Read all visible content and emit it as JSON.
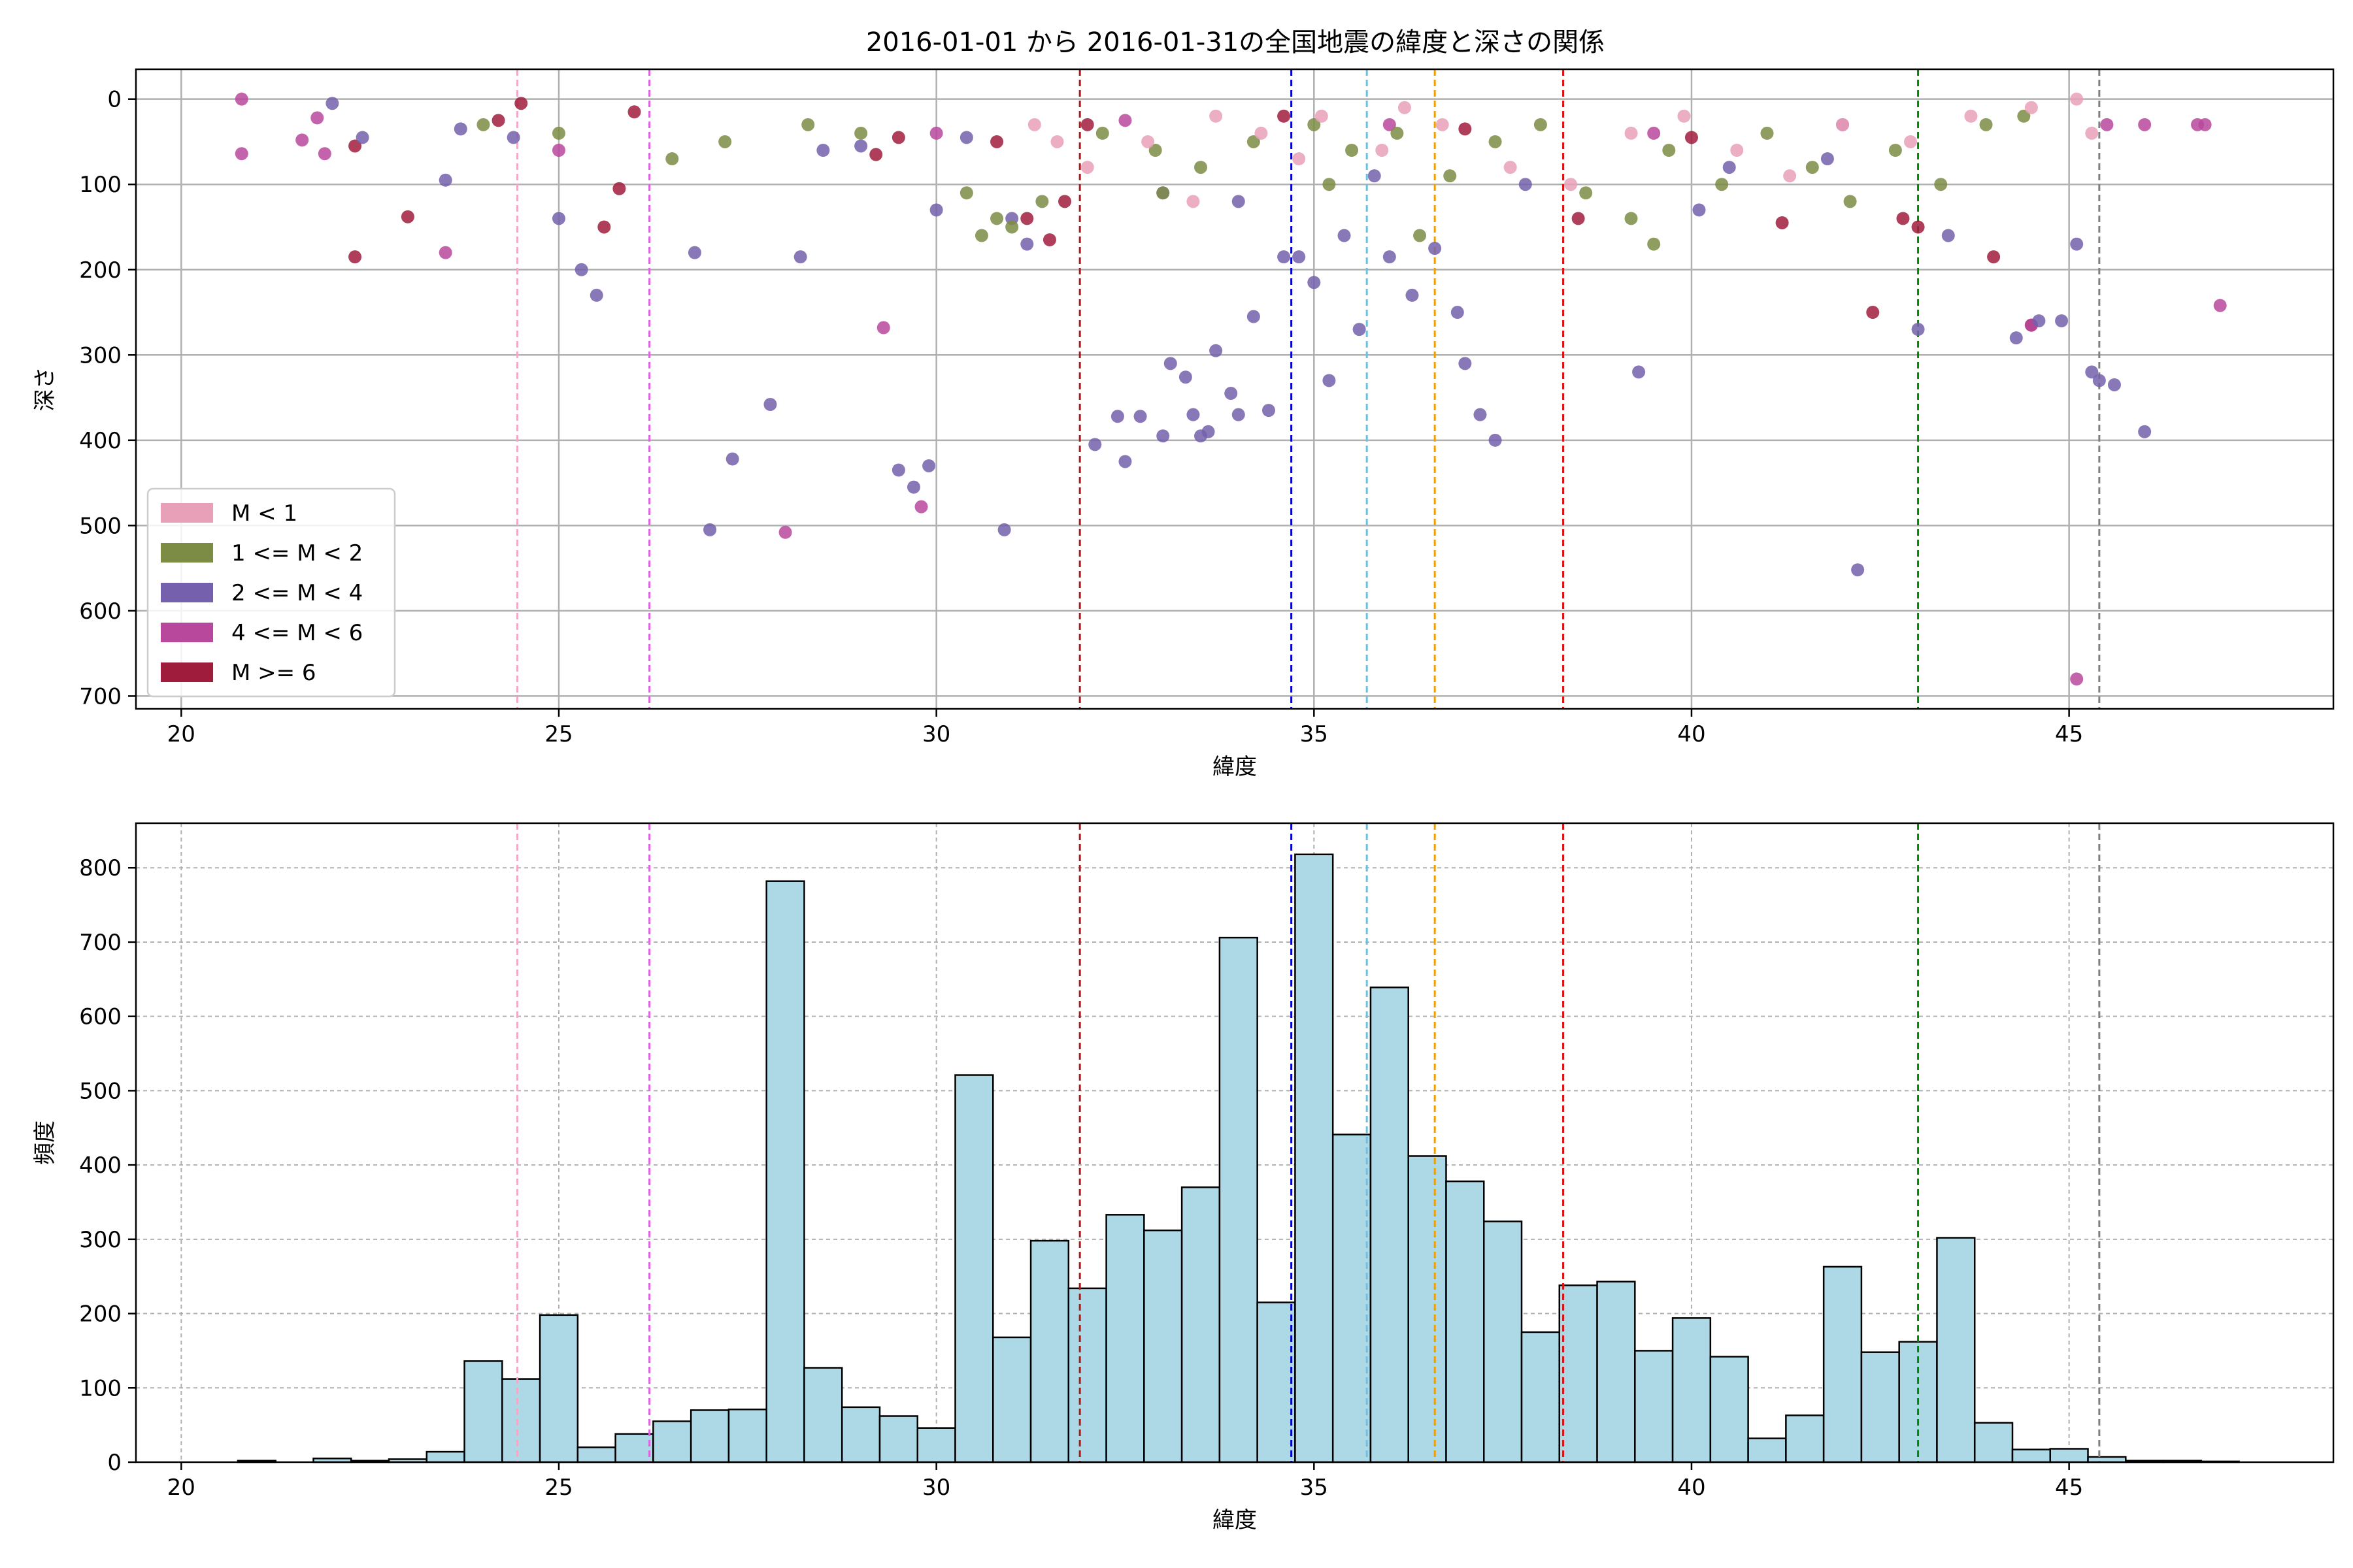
{
  "figure": {
    "title": "2016-01-01 から 2016-01-31の全国地震の緯度と深さの関係"
  },
  "chart_data": [
    {
      "type": "scatter",
      "xlabel": "緯度",
      "ylabel": "深さ",
      "xlim": [
        19.4,
        48.5
      ],
      "ylim": [
        715,
        -35
      ],
      "y_inverted": true,
      "xticks": [
        20,
        25,
        30,
        35,
        40,
        45
      ],
      "yticks": [
        0,
        100,
        200,
        300,
        400,
        500,
        600,
        700
      ],
      "grid": true,
      "legend_position": "lower-left",
      "legend": [
        {
          "label": "M < 1",
          "color": "#e8a0b8"
        },
        {
          "label": "1 <= M < 2",
          "color": "#7d8c44"
        },
        {
          "label": "2 <= M < 4",
          "color": "#7460ac"
        },
        {
          "label": "4 <= M < 6",
          "color": "#b8489c"
        },
        {
          "label": "M >= 6",
          "color": "#a01c3c"
        }
      ],
      "reference_lines": [
        {
          "x": 24.45,
          "color": "#f4a8c8"
        },
        {
          "x": 26.2,
          "color": "#e060e0"
        },
        {
          "x": 31.9,
          "color": "#b01818"
        },
        {
          "x": 34.7,
          "color": "#0000cc"
        },
        {
          "x": 35.7,
          "color": "#70c0e0"
        },
        {
          "x": 36.6,
          "color": "#f0a000"
        },
        {
          "x": 38.3,
          "color": "#e01010"
        },
        {
          "x": 43.0,
          "color": "#008800"
        },
        {
          "x": 45.4,
          "color": "#808080"
        }
      ],
      "series": [
        {
          "name": "M >= 6",
          "color": "#a01c3c",
          "x": [
            22.3,
            22.3,
            23.0,
            25.8,
            25.6,
            24.2,
            24.5,
            26.0,
            29.2,
            29.5,
            30.8,
            31.2,
            31.5,
            31.7,
            38.5,
            41.2,
            42.4,
            42.8,
            43.0,
            44.0,
            44.5,
            32.0,
            34.6,
            37.0,
            40.0
          ],
          "y": [
            185,
            55,
            138,
            105,
            150,
            25,
            5,
            15,
            65,
            45,
            50,
            140,
            165,
            120,
            140,
            145,
            250,
            140,
            150,
            185,
            265,
            30,
            20,
            35,
            45
          ]
        },
        {
          "name": "4 <= M < 6",
          "color": "#b8489c",
          "x": [
            20.8,
            20.8,
            21.6,
            21.8,
            21.9,
            23.5,
            25.0,
            29.3,
            29.8,
            28.0,
            46.0,
            46.7,
            46.8,
            47.0,
            45.1,
            45.5,
            44.5,
            30.0,
            32.5,
            36.0,
            39.5,
            42.0
          ],
          "y": [
            0,
            64,
            48,
            22,
            64,
            180,
            60,
            268,
            478,
            508,
            30,
            30,
            30,
            242,
            680,
            30,
            265,
            40,
            25,
            30,
            40,
            30
          ]
        },
        {
          "name": "2 <= M < 4",
          "color": "#7460ac",
          "x": [
            22.0,
            22.4,
            23.5,
            23.7,
            24.4,
            25.0,
            25.3,
            25.5,
            26.8,
            27.0,
            27.3,
            27.8,
            28.2,
            28.5,
            29.0,
            29.5,
            29.7,
            29.9,
            30.4,
            30.9,
            31.2,
            32.1,
            32.4,
            32.5,
            32.7,
            33.0,
            33.1,
            33.3,
            33.4,
            33.5,
            33.6,
            33.7,
            33.9,
            34.0,
            34.2,
            34.4,
            34.6,
            34.8,
            35.0,
            35.2,
            35.4,
            35.6,
            36.0,
            36.3,
            36.6,
            36.9,
            37.2,
            37.4,
            37.0,
            39.3,
            40.1,
            42.2,
            43.0,
            43.4,
            44.3,
            44.6,
            44.9,
            45.1,
            45.3,
            45.4,
            45.6,
            46.0,
            30.0,
            31.0,
            33.0,
            34.0,
            35.8,
            37.8,
            40.5,
            41.8
          ],
          "y": [
            5,
            45,
            95,
            35,
            45,
            140,
            200,
            230,
            180,
            505,
            422,
            358,
            185,
            60,
            55,
            435,
            455,
            430,
            45,
            505,
            170,
            405,
            372,
            425,
            372,
            395,
            310,
            326,
            370,
            395,
            390,
            295,
            345,
            370,
            255,
            365,
            185,
            185,
            215,
            330,
            160,
            270,
            185,
            230,
            175,
            250,
            370,
            400,
            310,
            320,
            130,
            552,
            270,
            160,
            280,
            260,
            260,
            170,
            320,
            330,
            335,
            390,
            130,
            140,
            110,
            120,
            90,
            100,
            80,
            70
          ]
        },
        {
          "name": "1 <= M < 2",
          "color": "#7d8c44",
          "x": [
            24.0,
            25.0,
            26.5,
            27.2,
            28.3,
            29.0,
            30.4,
            30.8,
            31.4,
            32.2,
            32.9,
            33.5,
            34.2,
            35.0,
            35.5,
            36.1,
            36.8,
            37.4,
            38.0,
            38.6,
            39.2,
            39.7,
            40.4,
            41.0,
            41.6,
            42.1,
            42.7,
            43.3,
            43.9,
            44.4,
            30.6,
            31.0,
            33.0,
            35.2,
            36.4,
            39.5
          ],
          "y": [
            30,
            40,
            70,
            50,
            30,
            40,
            110,
            140,
            120,
            40,
            60,
            80,
            50,
            30,
            60,
            40,
            90,
            50,
            30,
            110,
            140,
            60,
            100,
            40,
            80,
            120,
            60,
            100,
            30,
            20,
            160,
            150,
            110,
            100,
            160,
            170
          ]
        },
        {
          "name": "M < 1",
          "color": "#e8a0b8",
          "x": [
            31.3,
            32.0,
            32.8,
            33.4,
            34.3,
            35.1,
            35.9,
            36.7,
            37.6,
            38.4,
            39.2,
            39.9,
            40.6,
            41.3,
            42.0,
            42.9,
            43.7,
            44.5,
            45.1,
            45.3,
            31.6,
            33.7,
            34.8,
            36.2
          ],
          "y": [
            30,
            80,
            50,
            120,
            40,
            20,
            60,
            30,
            80,
            100,
            40,
            20,
            60,
            90,
            30,
            50,
            20,
            10,
            0,
            40,
            50,
            20,
            70,
            10
          ]
        }
      ]
    },
    {
      "type": "bar",
      "subtype": "histogram",
      "xlabel": "緯度",
      "ylabel": "頻度",
      "xlim": [
        19.4,
        48.5
      ],
      "ylim": [
        0,
        860
      ],
      "xticks": [
        20,
        25,
        30,
        35,
        40,
        45
      ],
      "yticks": [
        0,
        100,
        200,
        300,
        400,
        500,
        600,
        700,
        800
      ],
      "grid": true,
      "bar_color": "#add8e6",
      "edge_color": "#000000",
      "bin_start": 20.75,
      "bin_width": 0.5,
      "values": [
        2,
        0,
        5,
        2,
        4,
        14,
        136,
        112,
        198,
        20,
        38,
        55,
        70,
        71,
        782,
        127,
        74,
        62,
        46,
        521,
        168,
        298,
        234,
        333,
        312,
        370,
        706,
        215,
        818,
        441,
        639,
        412,
        378,
        324,
        175,
        238,
        243,
        150,
        194,
        142,
        32,
        63,
        263,
        148,
        162,
        302,
        53,
        17,
        18,
        7,
        2,
        2,
        1
      ],
      "reference_lines": [
        {
          "x": 24.45,
          "color": "#f4a8c8"
        },
        {
          "x": 26.2,
          "color": "#e060e0"
        },
        {
          "x": 31.9,
          "color": "#b01818"
        },
        {
          "x": 34.7,
          "color": "#0000cc"
        },
        {
          "x": 35.7,
          "color": "#70c0e0"
        },
        {
          "x": 36.6,
          "color": "#f0a000"
        },
        {
          "x": 38.3,
          "color": "#e01010"
        },
        {
          "x": 43.0,
          "color": "#008800"
        },
        {
          "x": 45.4,
          "color": "#808080"
        }
      ]
    }
  ]
}
